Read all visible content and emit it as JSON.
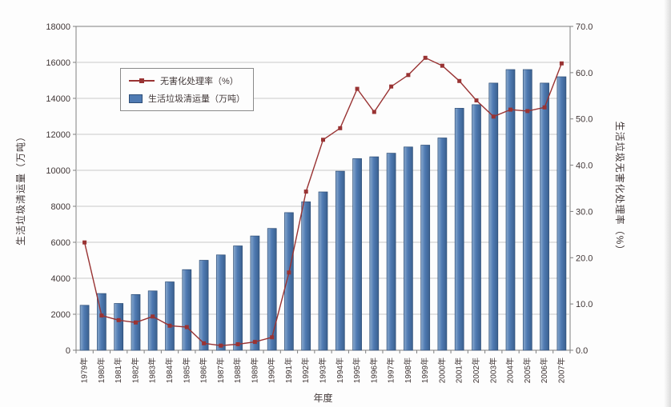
{
  "page": {
    "background": "#ffffff",
    "plot_background": "#fdfdfd",
    "grid_color": "#c9c9c9",
    "border_color": "#7f7f7f",
    "text_color": "#403636"
  },
  "legend": {
    "items": [
      {
        "label": "无害化处理率（%）",
        "swatch": "line-with-square-marker"
      },
      {
        "label": "生活垃圾清运量（万吨）",
        "swatch": "filled-bar"
      }
    ]
  },
  "chart_data": {
    "type": "bar",
    "subtype": "combo-bar-line-dual-axis",
    "title": "",
    "xlabel": "年度",
    "grid": true,
    "legend_position": "top-left-inside",
    "categories": [
      "1979年",
      "1980年",
      "1981年",
      "1982年",
      "1983年",
      "1984年",
      "1985年",
      "1986年",
      "1987年",
      "1988年",
      "1989年",
      "1990年",
      "1991年",
      "1992年",
      "1993年",
      "1994年",
      "1995年",
      "1996年",
      "1997年",
      "1998年",
      "1999年",
      "2000年",
      "2001年",
      "2002年",
      "2003年",
      "2004年",
      "2005年",
      "2006年",
      "2007年"
    ],
    "series": [
      {
        "name": "无害化处理率（%）",
        "type": "line",
        "axis": "right",
        "color": "#993333",
        "marker": "square",
        "values": [
          23.3,
          7.5,
          6.5,
          6.0,
          7.3,
          5.3,
          5.0,
          1.5,
          1.0,
          1.3,
          1.8,
          2.8,
          16.8,
          34.3,
          45.5,
          48.0,
          56.5,
          51.5,
          57.0,
          59.5,
          63.2,
          61.5,
          58.2,
          54.0,
          50.5,
          52.0,
          51.7,
          52.5,
          62.0
        ]
      },
      {
        "name": "生活垃圾清运量（万吨）",
        "type": "bar",
        "axis": "left",
        "color": "#4f7ab2",
        "edge_color": "#2e4e77",
        "values": [
          2500,
          3150,
          2600,
          3100,
          3300,
          3800,
          4480,
          5000,
          5300,
          5800,
          6350,
          6770,
          7650,
          8250,
          8800,
          9950,
          10650,
          10750,
          10950,
          11300,
          11400,
          11800,
          13450,
          13650,
          14850,
          15600,
          15600,
          14850,
          15200
        ]
      }
    ],
    "left_axis": {
      "title": "生活垃圾清运量（万吨）",
      "min": 0,
      "max": 18000,
      "step": 2000,
      "tick_labels": [
        "0",
        "2000",
        "4000",
        "6000",
        "8000",
        "10000",
        "12000",
        "14000",
        "16000",
        "18000"
      ]
    },
    "right_axis": {
      "title": "生活垃圾无害化处理率（%）",
      "min": 0,
      "max": 70,
      "step": 10,
      "tick_labels": [
        "0.0",
        "10.0",
        "20.0",
        "30.0",
        "40.0",
        "50.0",
        "60.0",
        "70.0"
      ]
    }
  }
}
